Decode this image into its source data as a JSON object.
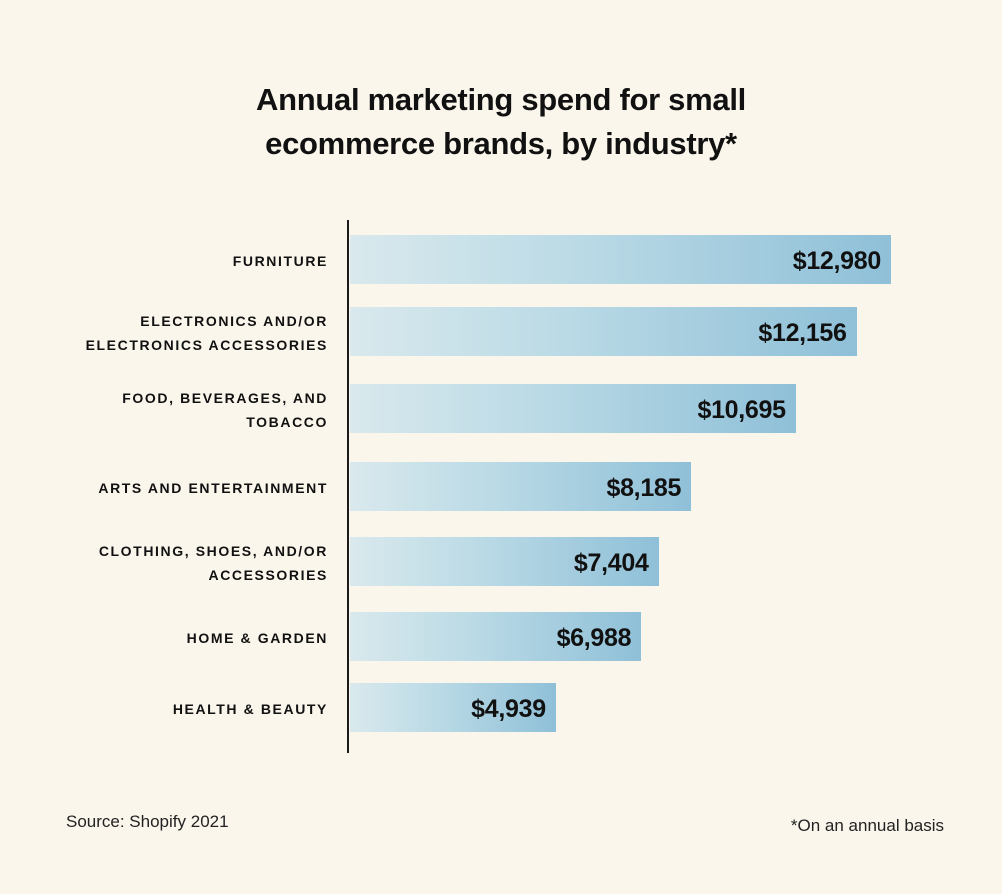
{
  "chart_data": {
    "type": "bar",
    "orientation": "horizontal",
    "title": "Annual marketing spend for small ecommerce brands, by industry*",
    "title_lines": [
      "Annual marketing spend for small",
      "ecommerce brands, by industry*"
    ],
    "categories": [
      [
        "FURNITURE"
      ],
      [
        "ELECTRONICS AND/OR",
        "ELECTRONICS ACCESSORIES"
      ],
      [
        "FOOD, BEVERAGES, AND",
        "TOBACCO"
      ],
      [
        "ARTS AND ENTERTAINMENT"
      ],
      [
        "CLOTHING, SHOES, AND/OR",
        "ACCESSORIES"
      ],
      [
        "HOME & GARDEN"
      ],
      [
        "HEALTH & BEAUTY"
      ]
    ],
    "values": [
      12980,
      12156,
      10695,
      8185,
      7404,
      6988,
      4939
    ],
    "value_labels": [
      "$12,980",
      "$12,156",
      "$10,695",
      "$8,185",
      "$7,404",
      "$6,988",
      "$4,939"
    ],
    "xlabel": "",
    "ylabel": "",
    "grid": false,
    "bar_color_start": "#d9e9ed",
    "bar_color_end": "#8fc0d8",
    "background": "#fbf6ec"
  },
  "footer": {
    "source": "Source: Shopify 2021",
    "note": "*On an annual basis"
  }
}
